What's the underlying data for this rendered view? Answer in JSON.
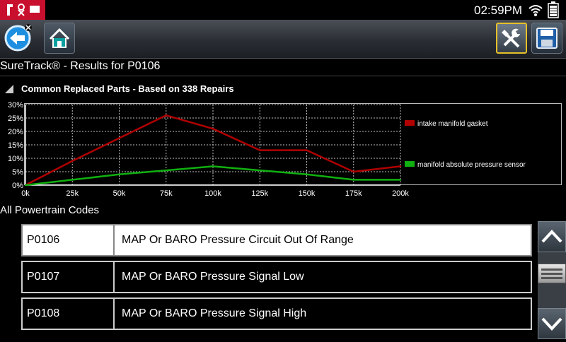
{
  "status": {
    "time": "02:59PM"
  },
  "page": {
    "title": "SureTrack® - Results for P0106"
  },
  "chart_heading": "Common Replaced Parts - Based on 338 Repairs",
  "chart_data": {
    "type": "line",
    "x": [
      "0k",
      "25k",
      "50k",
      "75k",
      "100k",
      "125k",
      "150k",
      "175k",
      "200k"
    ],
    "ylim": [
      0,
      30
    ],
    "y_ticks": [
      "0%",
      "5%",
      "10%",
      "15%",
      "20%",
      "25%",
      "30%"
    ],
    "grid": true,
    "legend_placement": "right",
    "series": [
      {
        "name": "intake manifold gasket",
        "color": "#b00000",
        "values": [
          0,
          9,
          17.5,
          26,
          21,
          13,
          13,
          5,
          7
        ]
      },
      {
        "name": "manifold absolute pressure sensor",
        "color": "#10b010",
        "values": [
          0,
          2,
          4,
          5.5,
          7,
          5.5,
          4,
          2,
          2
        ]
      }
    ]
  },
  "section_label": "All Powertrain Codes",
  "codes": [
    {
      "code": "P0106",
      "description": "MAP Or BARO Pressure Circuit Out Of Range"
    },
    {
      "code": "P0107",
      "description": "MAP Or BARO Pressure Signal Low"
    },
    {
      "code": "P0108",
      "description": "MAP Or BARO Pressure Signal High"
    }
  ],
  "icons": {
    "back": "back-arrow-icon",
    "home": "home-icon",
    "tools": "tools-icon",
    "save": "save-icon",
    "wifi": "wifi-icon",
    "battery": "battery-icon",
    "scroll_up": "chevron-up-icon",
    "scroll_down": "chevron-down-icon",
    "scroll_handle": "menu-lines-icon"
  },
  "colors": {
    "accent_tools_border": "#e6c12a",
    "selected_row": "#ffffff",
    "status_badge": "#c8102e"
  }
}
